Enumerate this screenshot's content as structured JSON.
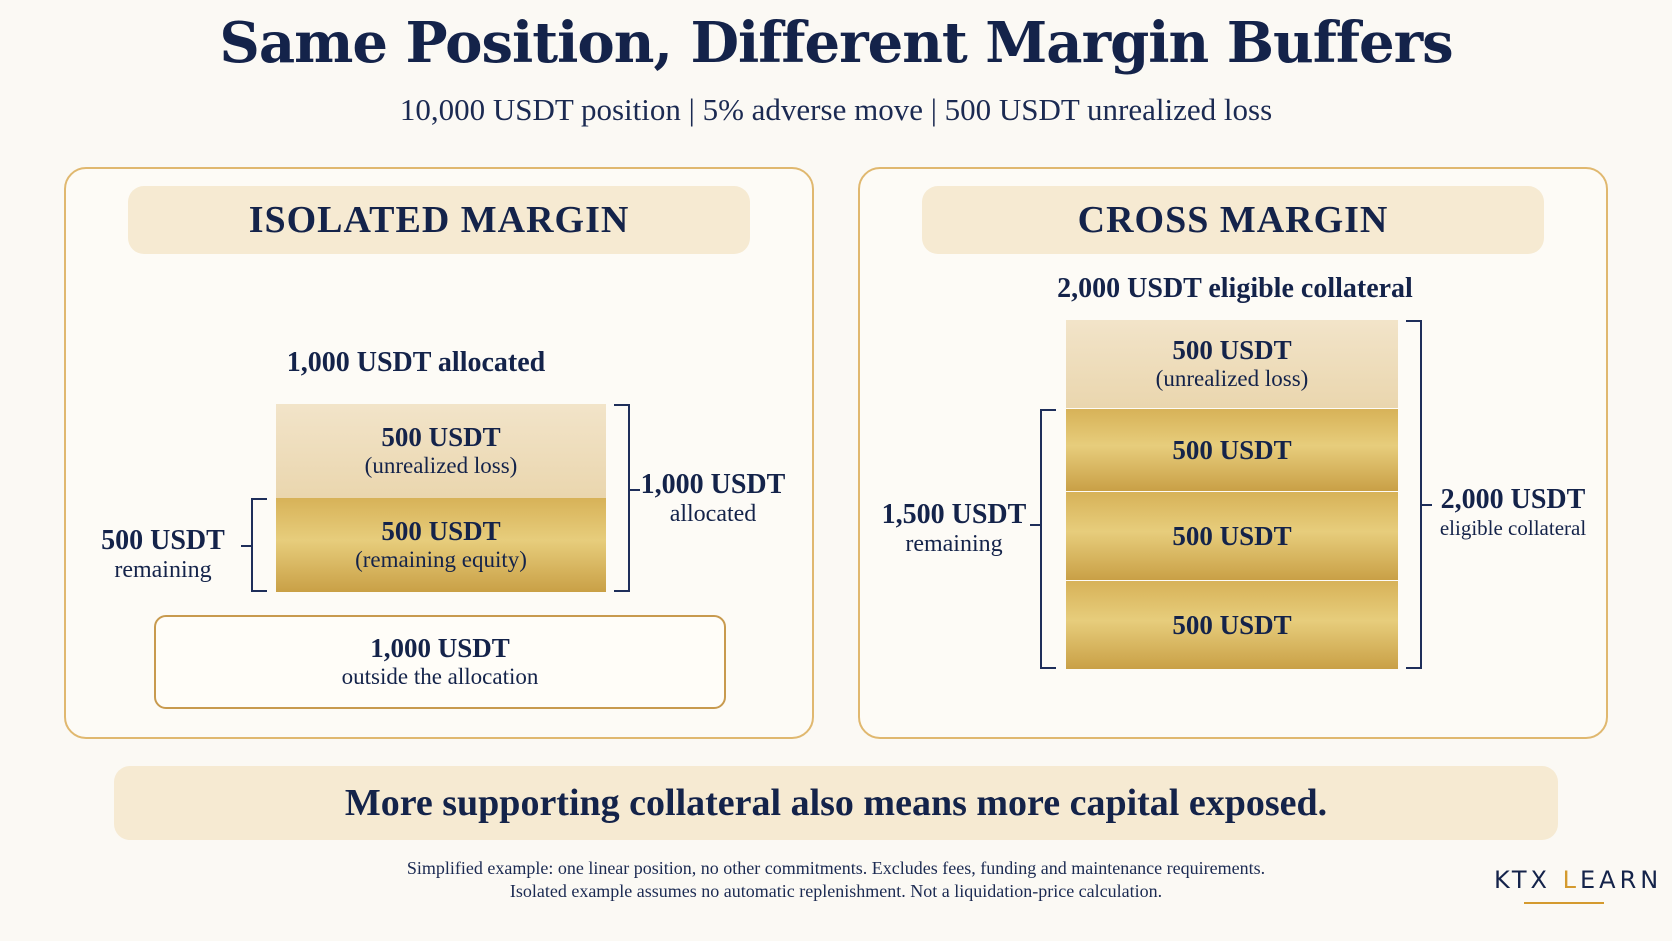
{
  "header": {
    "title": "Same Position, Different Margin Buffers",
    "subtitle": "10,000 USDT position  |  5% adverse move  |  500 USDT unrealized loss"
  },
  "isolated": {
    "heading": "ISOLATED  MARGIN",
    "allocated_title": "1,000 USDT allocated",
    "loss_block": {
      "amount": "500 USDT",
      "note": "(unrealized loss)"
    },
    "equity_block": {
      "amount": "500 USDT",
      "note": "(remaining equity)"
    },
    "left_label": {
      "amount": "500 USDT",
      "note": "remaining"
    },
    "right_label": {
      "amount": "1,000 USDT",
      "note": "allocated"
    },
    "outside": {
      "amount": "1,000 USDT",
      "note": "outside the allocation"
    }
  },
  "cross": {
    "heading": "CROSS MARGIN",
    "collateral_title": "2,000 USDT eligible collateral",
    "loss_block": {
      "amount": "500 USDT",
      "note": "(unrealized loss)"
    },
    "blocks": [
      "500 USDT",
      "500 USDT",
      "500 USDT"
    ],
    "left_label": {
      "amount": "1,500 USDT",
      "note": "remaining"
    },
    "right_label": {
      "amount": "2,000 USDT",
      "note": "eligible collateral"
    }
  },
  "banner": "More supporting collateral also means more capital exposed.",
  "footnotes": {
    "line1": "Simplified example: one linear position, no other commitments. Excludes fees, funding and maintenance requirements.",
    "line2": "Isolated example assumes no automatic replenishment. Not a liquidation-price calculation."
  },
  "logo": {
    "part1": "KTX ",
    "accent": "L",
    "part2": "EARN"
  },
  "colors": {
    "navy": "#14234a",
    "gold": "#d7b258",
    "cream": "#f6ead2",
    "border": "#e0b86f"
  }
}
